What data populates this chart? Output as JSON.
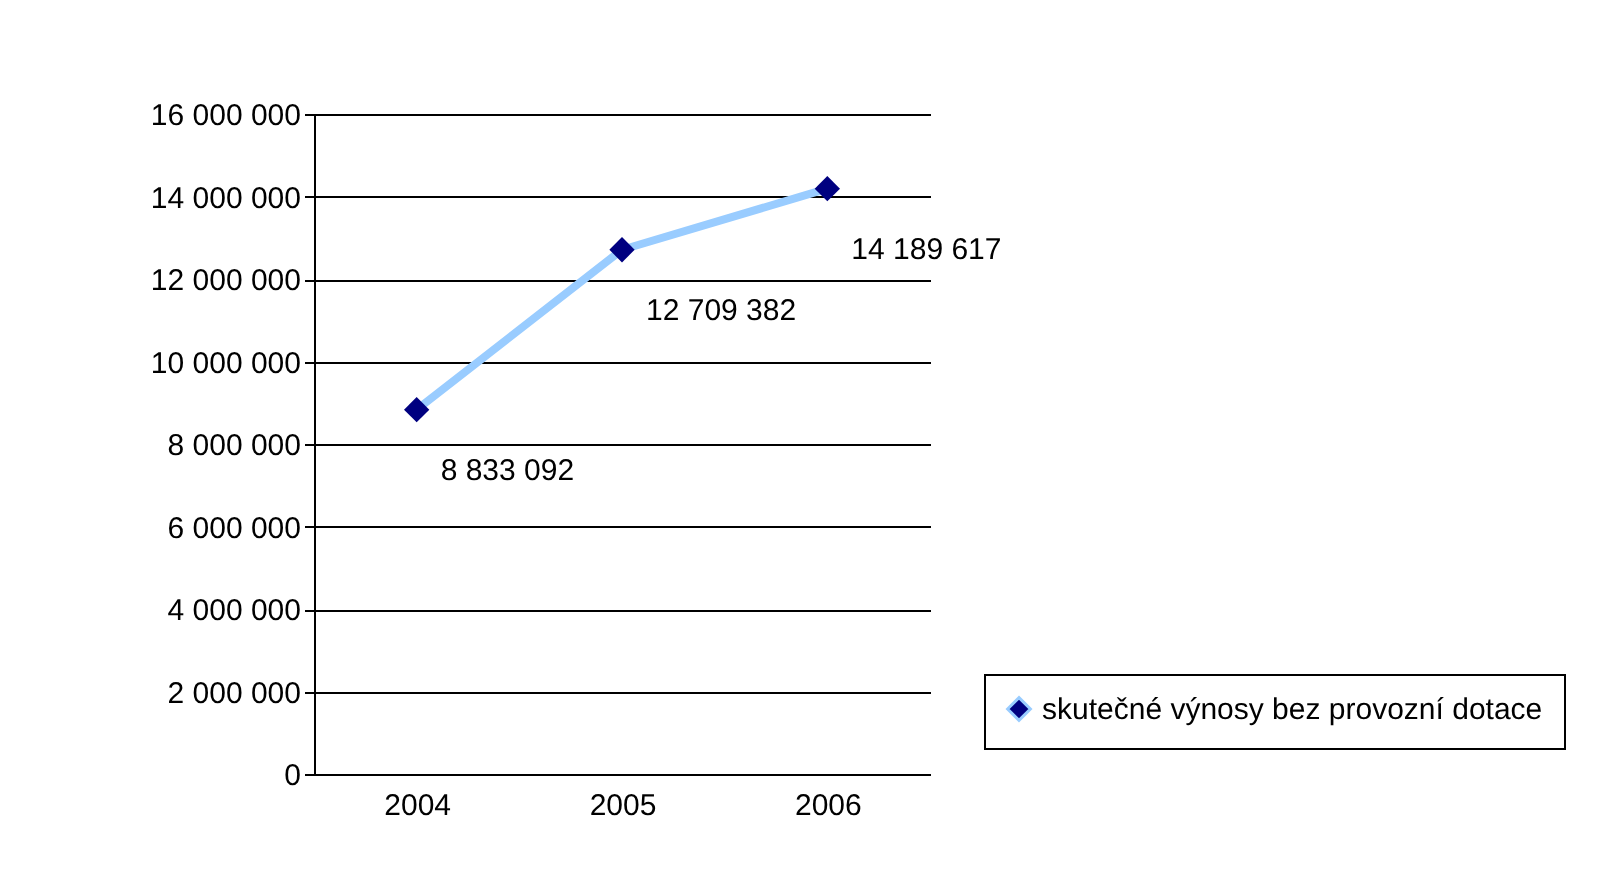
{
  "chart_data": {
    "type": "line",
    "categories": [
      "2004",
      "2005",
      "2006"
    ],
    "series": [
      {
        "name": "skutečné výnosy bez provozní dotace",
        "color": "#99ccff",
        "colors": [
          "#000080",
          "#000080",
          "#000080"
        ],
        "values": [
          8833092,
          12709382,
          14189617
        ],
        "value_labels": [
          "8 833 092",
          "12 709 382",
          "14 189 617"
        ]
      }
    ],
    "ylim": [
      0,
      16000000
    ],
    "yticks": [
      {
        "value": 0,
        "label": "0"
      },
      {
        "value": 2000000,
        "label": "2 000 000"
      },
      {
        "value": 4000000,
        "label": "4 000 000"
      },
      {
        "value": 6000000,
        "label": "6 000 000"
      },
      {
        "value": 8000000,
        "label": "8 000 000"
      },
      {
        "value": 10000000,
        "label": "10 000 000"
      },
      {
        "value": 12000000,
        "label": "12 000 000"
      },
      {
        "value": 14000000,
        "label": "14 000 000"
      },
      {
        "value": 16000000,
        "label": "16 000 000"
      }
    ],
    "grid": "y",
    "marker": "diamond",
    "legend": "right"
  }
}
